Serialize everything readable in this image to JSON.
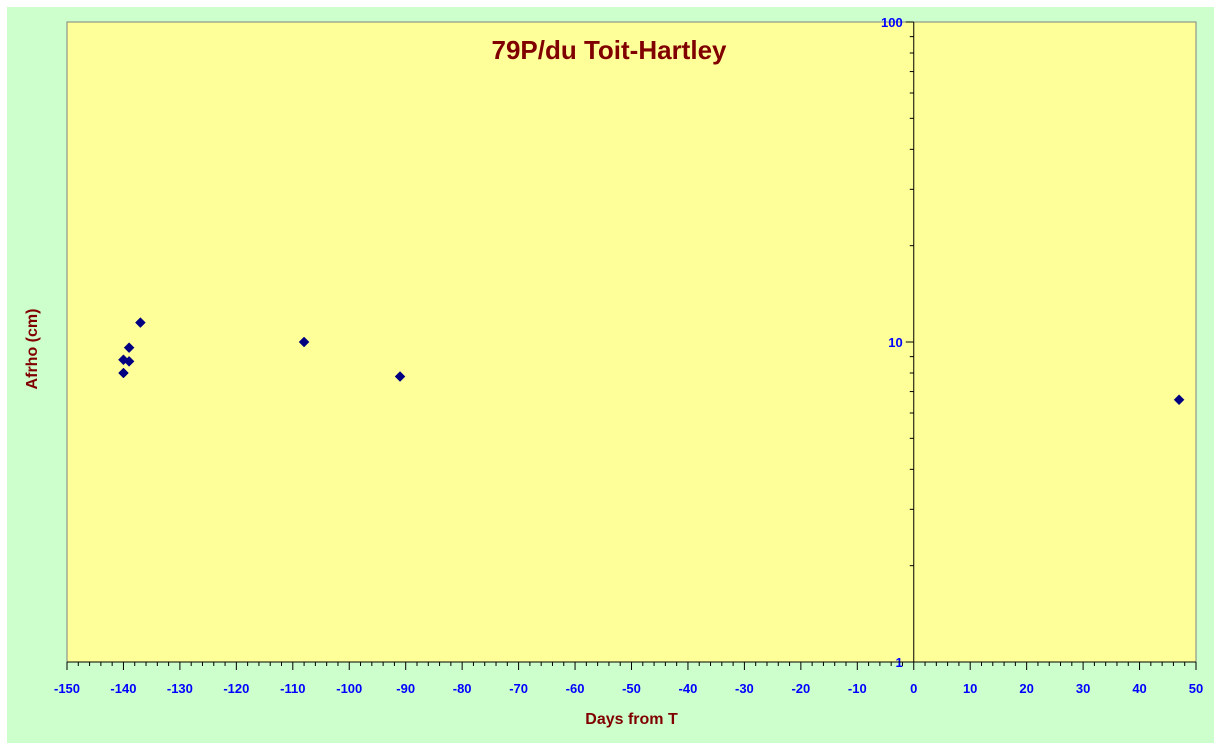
{
  "chart_data": {
    "type": "scatter",
    "title": "79P/du Toit-Hartley",
    "xlabel": "Days from T",
    "ylabel": "Afrho (cm)",
    "xlim": [
      -150,
      50
    ],
    "ylim": [
      1,
      100
    ],
    "y_scale": "log",
    "x_major_ticks": [
      -150,
      -140,
      -130,
      -120,
      -110,
      -100,
      -90,
      -80,
      -70,
      -60,
      -50,
      -40,
      -30,
      -20,
      -10,
      0,
      10,
      20,
      30,
      40,
      50
    ],
    "y_tick_labels": [
      1,
      10,
      100
    ],
    "grid": false,
    "legend": "none",
    "colors": {
      "outer_background": "#ccffcc",
      "plot_background": "#ffff99",
      "title": "#800000",
      "axis_title": "#800000",
      "tick_label": "#0000ff",
      "marker": "#000080"
    },
    "points": [
      {
        "x": -140,
        "y": 8.8
      },
      {
        "x": -140,
        "y": 8.0
      },
      {
        "x": -139,
        "y": 9.6
      },
      {
        "x": -139,
        "y": 8.7
      },
      {
        "x": -137,
        "y": 11.5
      },
      {
        "x": -108,
        "y": 10.0
      },
      {
        "x": -91,
        "y": 7.8
      },
      {
        "x": 47,
        "y": 6.6
      }
    ]
  }
}
